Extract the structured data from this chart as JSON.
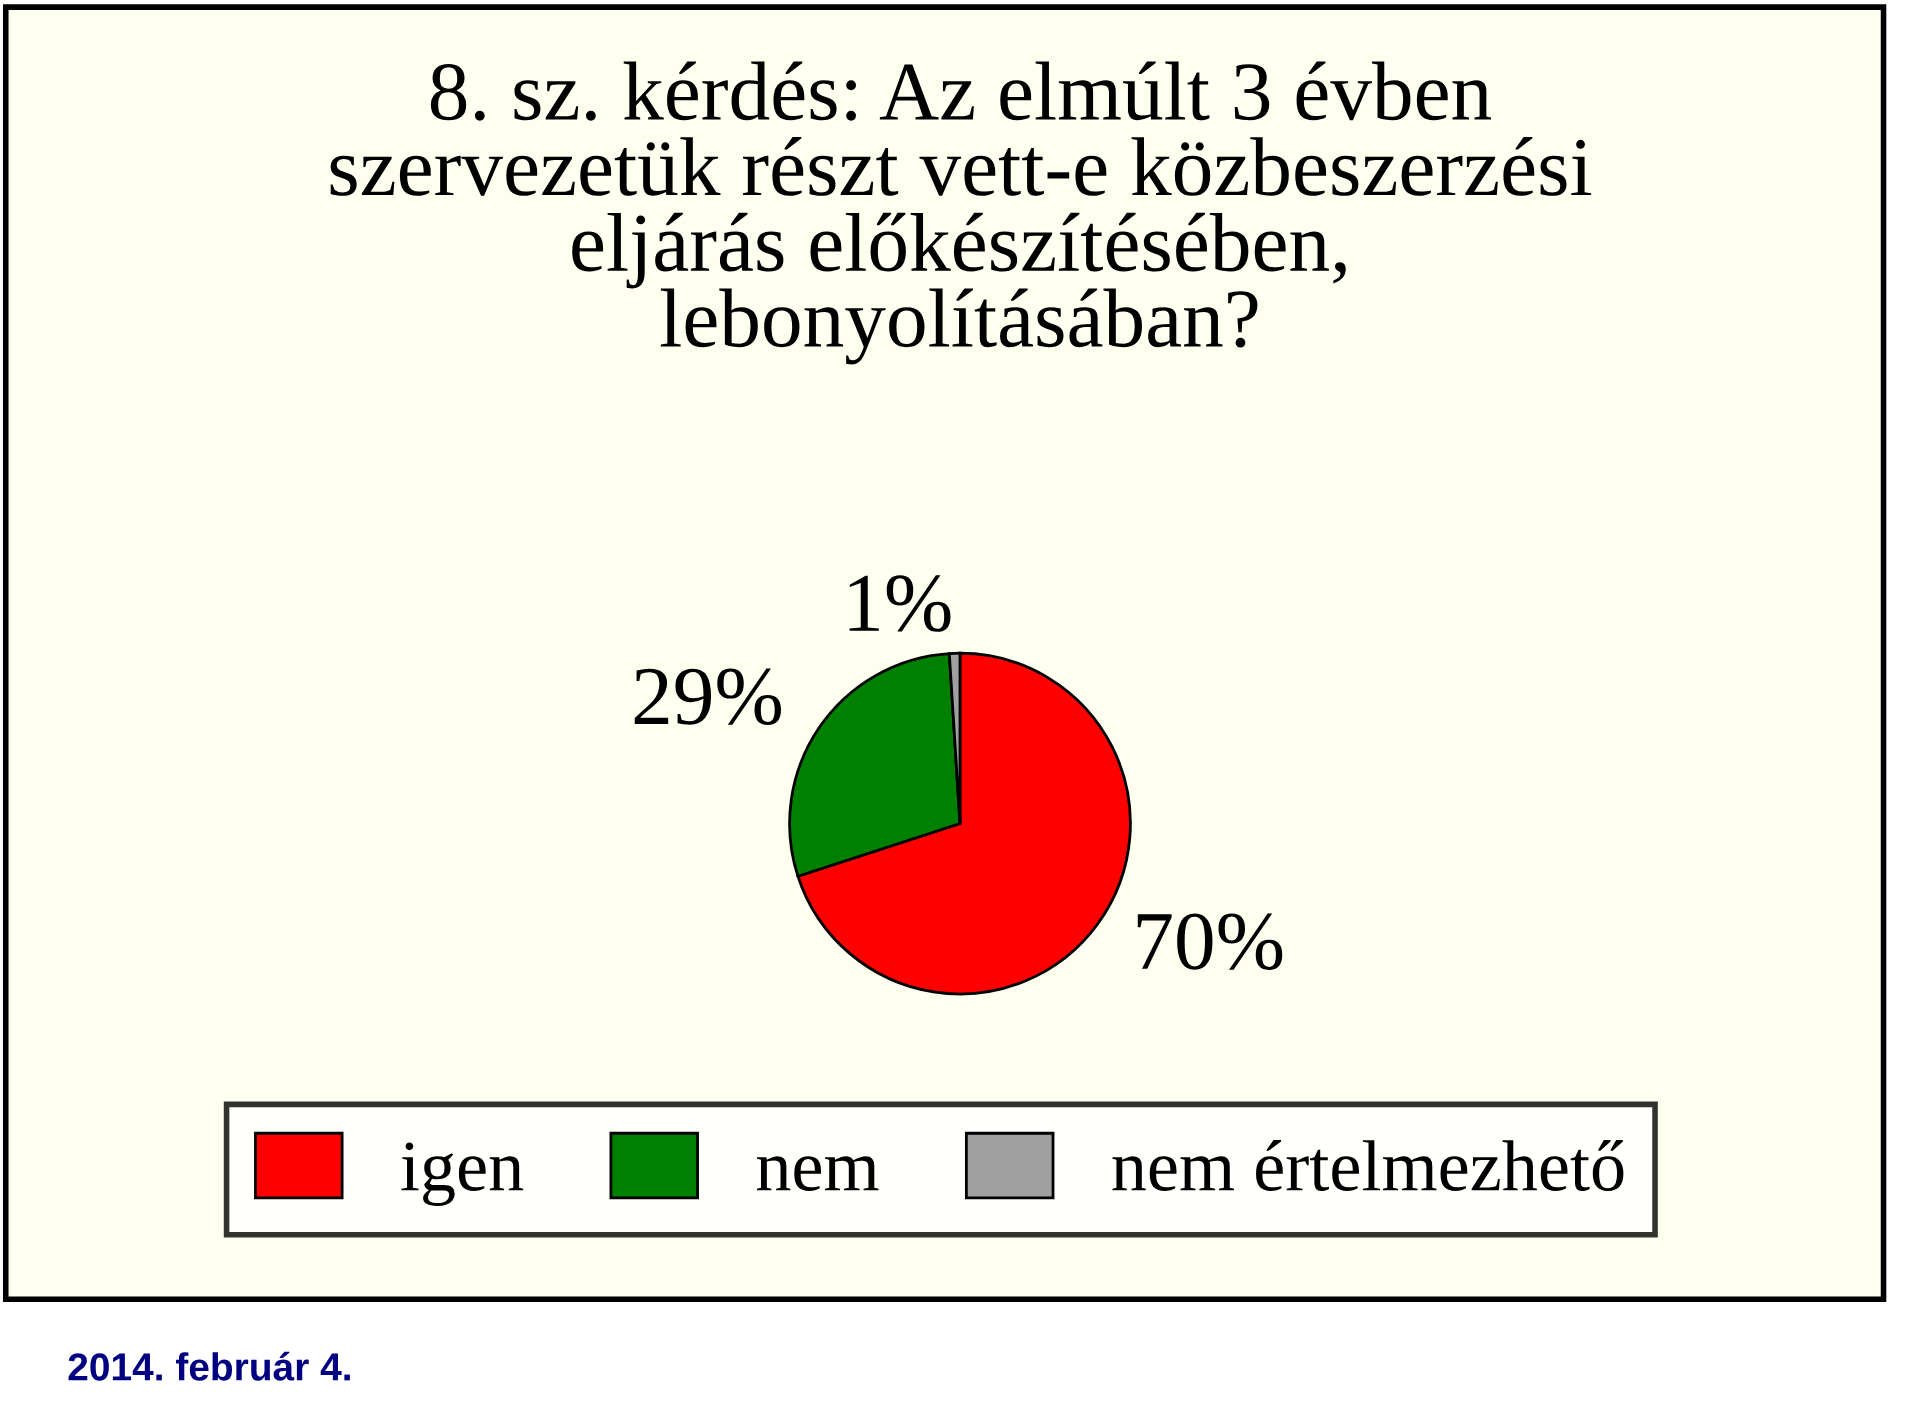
{
  "chart_data": {
    "type": "pie",
    "title": "8. sz. kérdés: Az elmúlt 3 évben\nszervezetük részt vett-e közbeszerzési\neljárás előkészítésében,\nlebonyolításában?",
    "categories": [
      "igen",
      "nem",
      "nem értelmezhető"
    ],
    "values": [
      70,
      29,
      1
    ],
    "colors": [
      "#ff0000",
      "#008000",
      "#a0a0a0"
    ],
    "value_labels": [
      "70%",
      "29%",
      "1%"
    ],
    "legend": "bottom",
    "annotations": [
      "2014. február 4."
    ]
  }
}
